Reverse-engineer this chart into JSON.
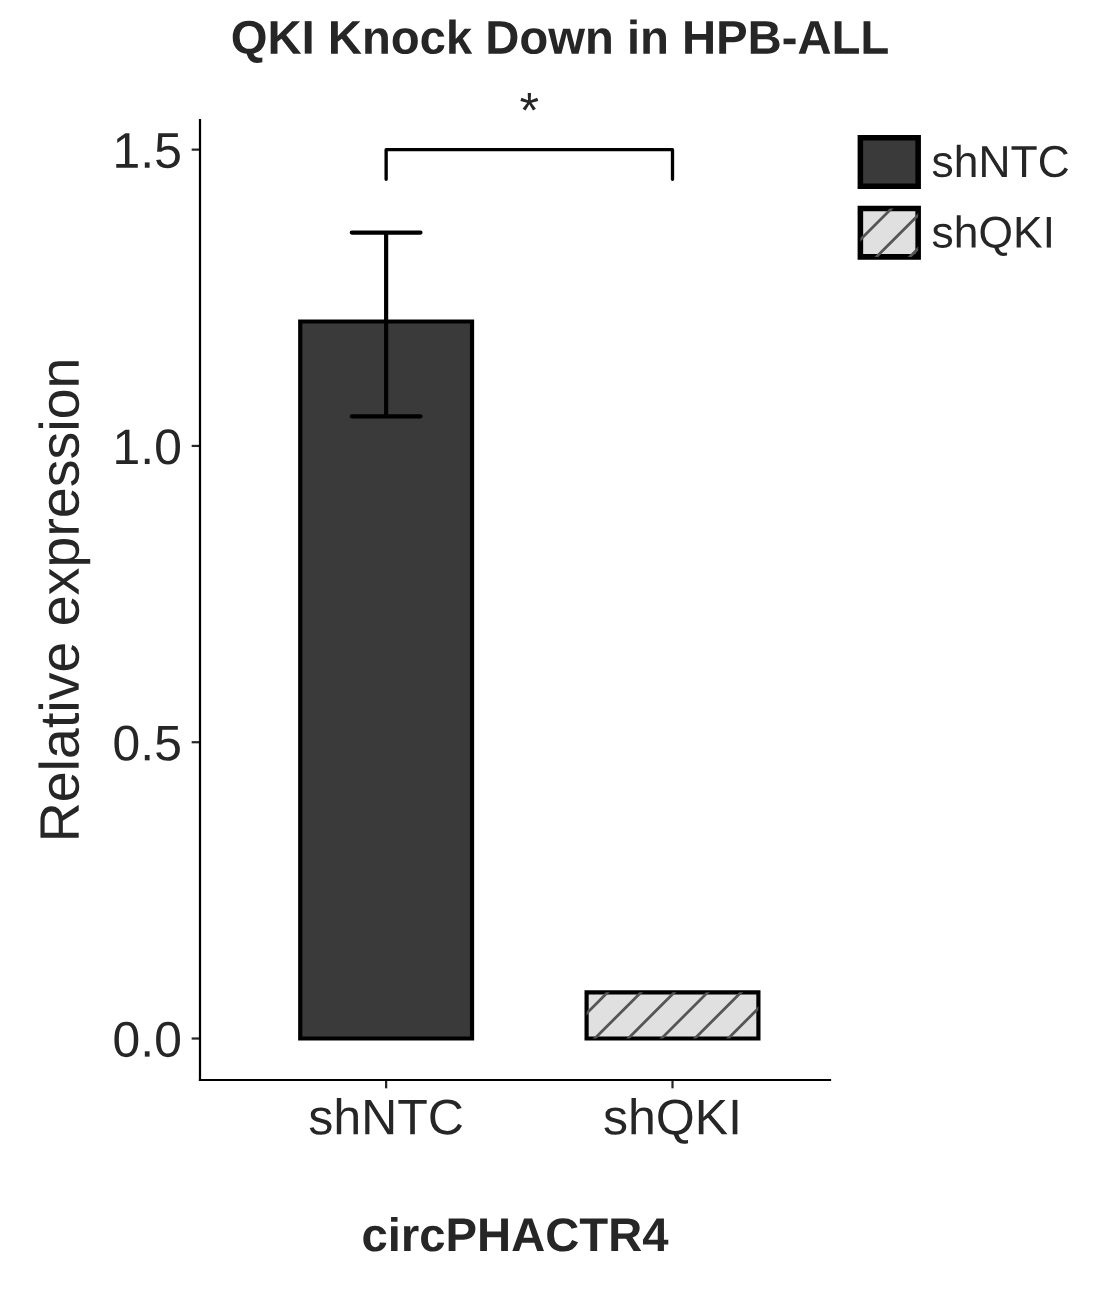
{
  "chart_data": {
    "type": "bar",
    "title": "QKI Knock Down in HPB-ALL",
    "xlabel": "circPHACTR4",
    "ylabel": "Relative expression",
    "categories": [
      "shNTC",
      "shQKI"
    ],
    "series": [
      {
        "name": "shNTC",
        "color": "#3a3a3a",
        "values": [
          1.21,
          null
        ],
        "errors": [
          [
            1.05,
            1.36
          ],
          null
        ]
      },
      {
        "name": "shQKI",
        "color": "#e0e0e0",
        "values": [
          null,
          0.078
        ]
      }
    ],
    "ylim": [
      -0.07,
      1.55
    ],
    "yticks": [
      {
        "value": 0,
        "label": "0.0"
      },
      {
        "value": 0.5,
        "label": "0.5"
      },
      {
        "value": 1,
        "label": "1.0"
      },
      {
        "value": 1.5,
        "label": "1.5"
      }
    ],
    "annotations": [
      "*"
    ],
    "legend": "top right",
    "grid": false
  }
}
